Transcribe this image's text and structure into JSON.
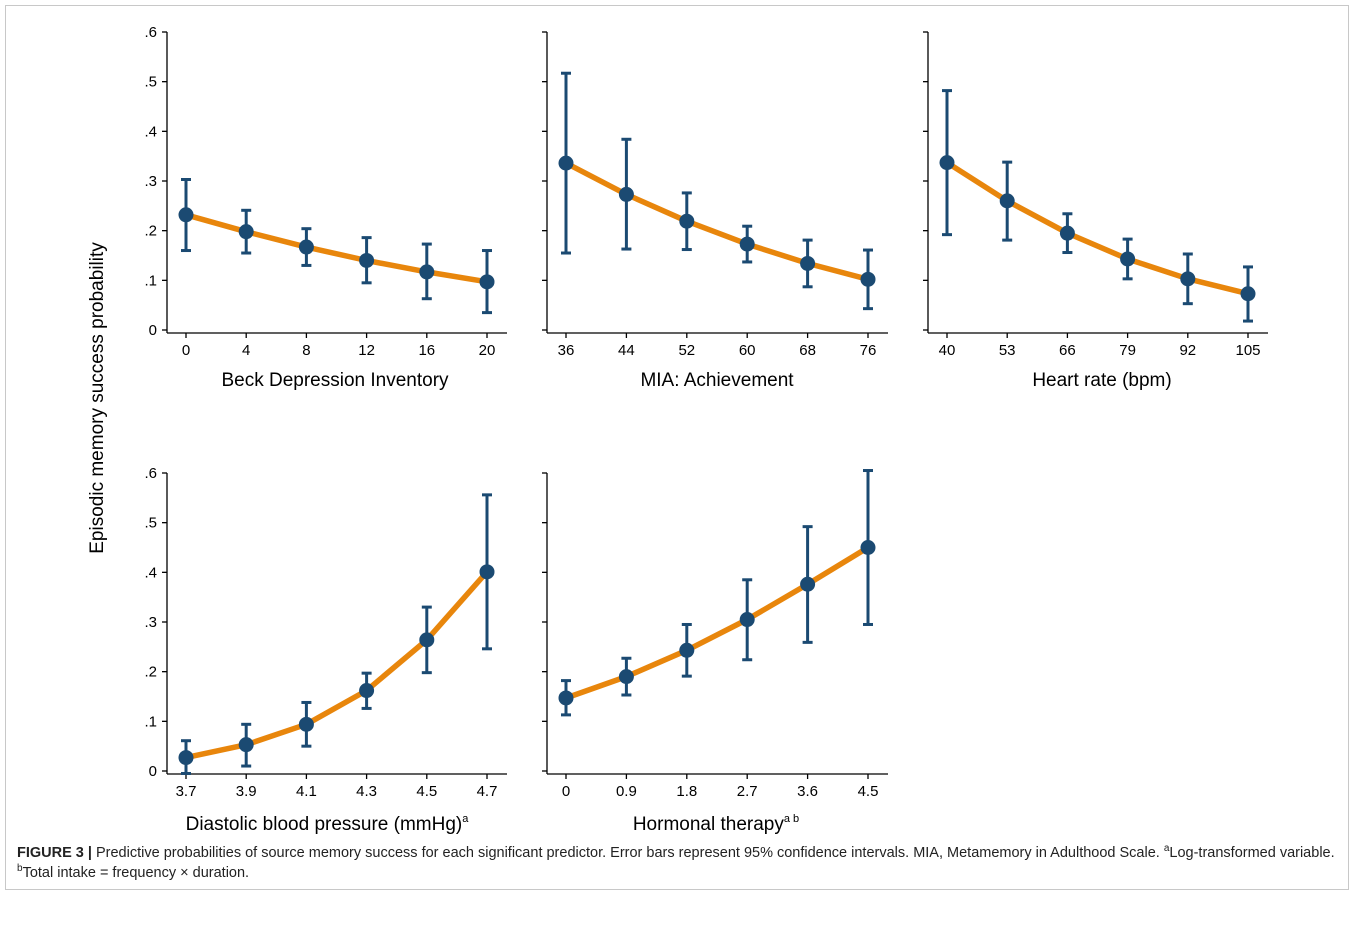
{
  "figure": {
    "ylabel": "Episodic memory success probability",
    "caption": {
      "label": "FIGURE 3 |",
      "text": " Predictive probabilities of source memory success for each significant predictor. Error bars represent 95% confidence intervals. MIA, Metamemory in Adulthood Scale. ",
      "note_a_marker": "a",
      "note_a_text": "Log-transformed variable. ",
      "note_b_marker": "b",
      "note_b_text": "Total intake = frequency × duration."
    }
  },
  "style": {
    "line_color": "#E8860C",
    "marker_color": "#1B4A72",
    "errorbar_color": "#1B4A72",
    "axis_color": "#000000",
    "frame_color": "#c8c8c8"
  },
  "chart_data": [
    {
      "type": "line",
      "xlabel": "Beck Depression Inventory",
      "xlabel_sup": "",
      "x": [
        0,
        4,
        8,
        12,
        16,
        20
      ],
      "xticklabels": [
        "0",
        "4",
        "8",
        "12",
        "16",
        "20"
      ],
      "y": [
        0.232,
        0.198,
        0.167,
        0.14,
        0.117,
        0.097
      ],
      "ci_low": [
        0.16,
        0.155,
        0.13,
        0.095,
        0.063,
        0.035
      ],
      "ci_high": [
        0.303,
        0.241,
        0.204,
        0.186,
        0.173,
        0.16
      ],
      "ylim": [
        0,
        0.6
      ],
      "yticks": [
        0,
        0.1,
        0.2,
        0.3,
        0.4,
        0.5,
        0.6
      ],
      "yticklabels": [
        "0",
        ".1",
        ".2",
        ".3",
        ".4",
        ".5",
        ".6"
      ],
      "show_ytick_labels": true
    },
    {
      "type": "line",
      "xlabel": "MIA: Achievement",
      "xlabel_sup": "",
      "x": [
        36,
        44,
        52,
        60,
        68,
        76
      ],
      "xticklabels": [
        "36",
        "44",
        "52",
        "60",
        "68",
        "76"
      ],
      "y": [
        0.336,
        0.273,
        0.219,
        0.173,
        0.134,
        0.102
      ],
      "ci_low": [
        0.155,
        0.163,
        0.162,
        0.137,
        0.087,
        0.043
      ],
      "ci_high": [
        0.517,
        0.384,
        0.276,
        0.209,
        0.181,
        0.161
      ],
      "ylim": [
        0,
        0.6
      ],
      "yticks": [
        0,
        0.1,
        0.2,
        0.3,
        0.4,
        0.5,
        0.6
      ],
      "yticklabels": [
        "0",
        ".1",
        ".2",
        ".3",
        ".4",
        ".5",
        ".6"
      ],
      "show_ytick_labels": false
    },
    {
      "type": "line",
      "xlabel": "Heart rate (bpm)",
      "xlabel_sup": "",
      "x": [
        40,
        53,
        66,
        79,
        92,
        105
      ],
      "xticklabels": [
        "40",
        "53",
        "66",
        "79",
        "92",
        "105"
      ],
      "y": [
        0.337,
        0.26,
        0.195,
        0.143,
        0.103,
        0.073
      ],
      "ci_low": [
        0.192,
        0.181,
        0.156,
        0.103,
        0.053,
        0.018
      ],
      "ci_high": [
        0.482,
        0.338,
        0.234,
        0.183,
        0.153,
        0.127
      ],
      "ylim": [
        0,
        0.6
      ],
      "yticks": [
        0,
        0.1,
        0.2,
        0.3,
        0.4,
        0.5,
        0.6
      ],
      "yticklabels": [
        "0",
        ".1",
        ".2",
        ".3",
        ".4",
        ".5",
        ".6"
      ],
      "show_ytick_labels": false
    },
    {
      "type": "line",
      "xlabel": "Diastolic blood pressure (mmHg)",
      "xlabel_sup": "a",
      "x": [
        3.7,
        3.9,
        4.1,
        4.3,
        4.5,
        4.7
      ],
      "xticklabels": [
        "3.7",
        "3.9",
        "4.1",
        "4.3",
        "4.5",
        "4.7"
      ],
      "y": [
        0.027,
        0.053,
        0.094,
        0.162,
        0.264,
        0.401
      ],
      "ci_low": [
        -0.005,
        0.01,
        0.05,
        0.126,
        0.198,
        0.246
      ],
      "ci_high": [
        0.061,
        0.094,
        0.138,
        0.197,
        0.33,
        0.556
      ],
      "ylim": [
        0,
        0.6
      ],
      "yticks": [
        0,
        0.1,
        0.2,
        0.3,
        0.4,
        0.5,
        0.6
      ],
      "yticklabels": [
        "0",
        ".1",
        ".2",
        ".3",
        ".4",
        ".5",
        ".6"
      ],
      "show_ytick_labels": true
    },
    {
      "type": "line",
      "xlabel": "Hormonal therapy",
      "xlabel_sup": "a b",
      "x": [
        0,
        0.9,
        1.8,
        2.7,
        3.6,
        4.5
      ],
      "xticklabels": [
        "0",
        "0.9",
        "1.8",
        "2.7",
        "3.6",
        "4.5"
      ],
      "y": [
        0.147,
        0.19,
        0.243,
        0.305,
        0.376,
        0.45
      ],
      "ci_low": [
        0.113,
        0.153,
        0.191,
        0.224,
        0.259,
        0.295
      ],
      "ci_high": [
        0.182,
        0.227,
        0.295,
        0.385,
        0.492,
        0.605
      ],
      "ylim": [
        0,
        0.6
      ],
      "yticks": [
        0,
        0.1,
        0.2,
        0.3,
        0.4,
        0.5,
        0.6
      ],
      "yticklabels": [
        "0",
        ".1",
        ".2",
        ".3",
        ".4",
        ".5",
        ".6"
      ],
      "show_ytick_labels": false
    }
  ]
}
